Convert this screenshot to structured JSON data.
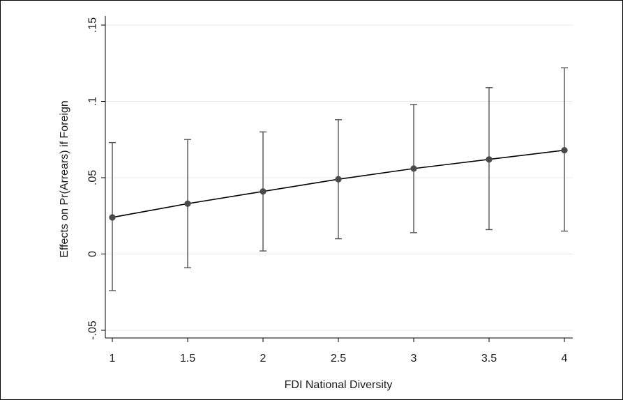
{
  "chart_data": {
    "type": "scatter",
    "title": "",
    "xlabel": "FDI National Diversity",
    "ylabel": "Effects on Pr(Arrears) if Foreign",
    "xlim": [
      1,
      4
    ],
    "ylim": [
      -0.05,
      0.15
    ],
    "x_ticks": [
      1,
      1.5,
      2,
      2.5,
      3,
      3.5,
      4
    ],
    "x_tick_labels": [
      "1",
      "1.5",
      "2",
      "2.5",
      "3",
      "3.5",
      "4"
    ],
    "y_ticks": [
      -0.05,
      0,
      0.05,
      0.1,
      0.15
    ],
    "y_tick_labels": [
      "-.05",
      "0",
      ".05",
      ".1",
      ".15"
    ],
    "grid": true,
    "connected": true,
    "series": [
      {
        "x": [
          1,
          1.5,
          2,
          2.5,
          3,
          3.5,
          4
        ],
        "y": [
          0.024,
          0.033,
          0.041,
          0.049,
          0.056,
          0.062,
          0.068
        ],
        "ci_low": [
          -0.024,
          -0.009,
          0.002,
          0.01,
          0.014,
          0.016,
          0.015
        ],
        "ci_high": [
          0.073,
          0.075,
          0.08,
          0.088,
          0.098,
          0.109,
          0.122
        ]
      }
    ],
    "colors": {
      "line": "#000000",
      "marker": "#4a4a4a",
      "errorbar": "#555555",
      "grid": "#eaeaea"
    }
  }
}
